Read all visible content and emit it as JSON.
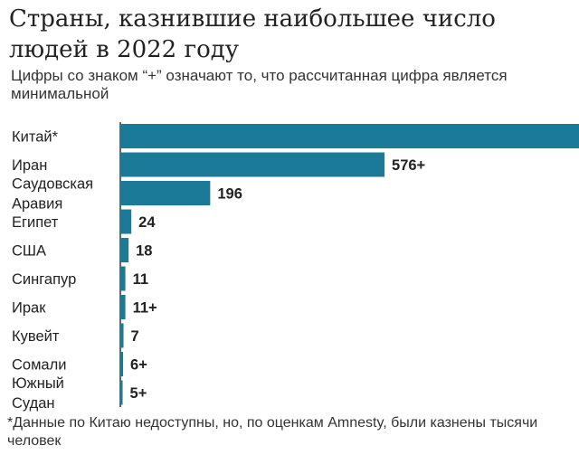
{
  "header": {
    "title": "Страны, казнившие наибольшее число людей в 2022 году",
    "subtitle": "Цифры со знаком “+” означают то, что рассчитанная цифра является минимальной"
  },
  "footer": {
    "note": "*Данные по Китаю недоступны, но, по оценкам Amnesty, были казнены тысячи человек"
  },
  "colors": {
    "bar": "#1b7a97",
    "axis": "#333333",
    "label": "#222222"
  },
  "chart_data": {
    "type": "bar",
    "orientation": "horizontal",
    "categories": [
      "Китай*",
      "Иран",
      "Саудовская Аравия",
      "Египет",
      "США",
      "Сингапур",
      "Ирак",
      "Кувейт",
      "Сомали",
      "Южный Судан"
    ],
    "values": [
      1000,
      576,
      196,
      24,
      18,
      11,
      11,
      7,
      6,
      5
    ],
    "data_labels": [
      "",
      "576+",
      "196",
      "24",
      "18",
      "11",
      "11+",
      "7",
      "6+",
      "5+"
    ],
    "xlim": [
      0,
      1000
    ],
    "grid": false
  }
}
